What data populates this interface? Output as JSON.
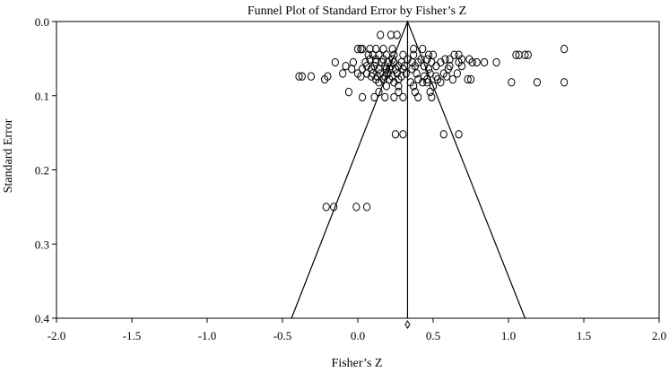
{
  "chart_data": {
    "type": "scatter",
    "title": "Funnel Plot of Standard Error by Fisher’s Z",
    "xlabel": "Fisher’s Z",
    "ylabel": "Standard Error",
    "xlim": [
      -2.0,
      2.0
    ],
    "ylim": [
      0.0,
      0.4
    ],
    "y_inverted": true,
    "x_ticks": [
      "-2.0",
      "-1.5",
      "-1.0",
      "-0.5",
      "0.0",
      "0.5",
      "1.0",
      "1.5",
      "2.0"
    ],
    "y_ticks": [
      "0.0",
      "0.1",
      "0.2",
      "0.3",
      "0.4"
    ],
    "x_tick_values": [
      -2.0,
      -1.5,
      -1.0,
      -0.5,
      0.0,
      0.5,
      1.0,
      1.5,
      2.0
    ],
    "y_tick_values": [
      0.0,
      0.1,
      0.2,
      0.3,
      0.4
    ],
    "summary_effect": 0.33,
    "funnel": {
      "apex": [
        0.33,
        0.0
      ],
      "left_base": [
        -0.44,
        0.4
      ],
      "right_base": [
        1.11,
        0.4
      ]
    },
    "marker": "circle-open",
    "points": [
      [
        0.15,
        0.018
      ],
      [
        0.22,
        0.018
      ],
      [
        0.26,
        0.018
      ],
      [
        0.0,
        0.037
      ],
      [
        0.02,
        0.037
      ],
      [
        0.03,
        0.037
      ],
      [
        0.08,
        0.037
      ],
      [
        0.12,
        0.037
      ],
      [
        0.17,
        0.037
      ],
      [
        0.23,
        0.037
      ],
      [
        0.37,
        0.037
      ],
      [
        0.43,
        0.037
      ],
      [
        1.37,
        0.037
      ],
      [
        0.07,
        0.045
      ],
      [
        0.1,
        0.045
      ],
      [
        0.14,
        0.045
      ],
      [
        0.19,
        0.045
      ],
      [
        0.24,
        0.045
      ],
      [
        0.3,
        0.045
      ],
      [
        0.37,
        0.045
      ],
      [
        0.47,
        0.045
      ],
      [
        0.5,
        0.045
      ],
      [
        0.64,
        0.045
      ],
      [
        0.67,
        0.045
      ],
      [
        1.05,
        0.045
      ],
      [
        1.07,
        0.045
      ],
      [
        1.11,
        0.045
      ],
      [
        1.13,
        0.045
      ],
      [
        0.08,
        0.051
      ],
      [
        0.12,
        0.051
      ],
      [
        0.17,
        0.051
      ],
      [
        0.23,
        0.051
      ],
      [
        0.33,
        0.051
      ],
      [
        0.42,
        0.051
      ],
      [
        0.46,
        0.051
      ],
      [
        0.58,
        0.051
      ],
      [
        0.61,
        0.051
      ],
      [
        0.69,
        0.051
      ],
      [
        0.74,
        0.051
      ],
      [
        -0.15,
        0.055
      ],
      [
        -0.03,
        0.055
      ],
      [
        0.05,
        0.055
      ],
      [
        0.12,
        0.055
      ],
      [
        0.16,
        0.055
      ],
      [
        0.2,
        0.055
      ],
      [
        0.24,
        0.055
      ],
      [
        0.29,
        0.055
      ],
      [
        0.36,
        0.055
      ],
      [
        0.4,
        0.055
      ],
      [
        0.49,
        0.055
      ],
      [
        0.55,
        0.055
      ],
      [
        0.67,
        0.055
      ],
      [
        0.76,
        0.055
      ],
      [
        0.79,
        0.055
      ],
      [
        0.84,
        0.055
      ],
      [
        0.92,
        0.055
      ],
      [
        -0.08,
        0.06
      ],
      [
        0.06,
        0.06
      ],
      [
        0.11,
        0.06
      ],
      [
        0.18,
        0.06
      ],
      [
        0.22,
        0.06
      ],
      [
        0.27,
        0.06
      ],
      [
        0.31,
        0.06
      ],
      [
        0.38,
        0.06
      ],
      [
        0.44,
        0.06
      ],
      [
        0.52,
        0.06
      ],
      [
        0.61,
        0.06
      ],
      [
        0.69,
        0.06
      ],
      [
        -0.04,
        0.064
      ],
      [
        0.03,
        0.064
      ],
      [
        0.09,
        0.064
      ],
      [
        0.14,
        0.064
      ],
      [
        0.19,
        0.064
      ],
      [
        0.21,
        0.064
      ],
      [
        0.25,
        0.064
      ],
      [
        0.3,
        0.064
      ],
      [
        0.36,
        0.064
      ],
      [
        0.47,
        0.064
      ],
      [
        0.6,
        0.064
      ],
      [
        -0.1,
        0.07
      ],
      [
        0.0,
        0.07
      ],
      [
        0.06,
        0.07
      ],
      [
        0.1,
        0.07
      ],
      [
        0.15,
        0.07
      ],
      [
        0.2,
        0.07
      ],
      [
        0.26,
        0.07
      ],
      [
        0.32,
        0.07
      ],
      [
        0.39,
        0.07
      ],
      [
        0.48,
        0.07
      ],
      [
        0.57,
        0.07
      ],
      [
        0.66,
        0.07
      ],
      [
        -0.39,
        0.074
      ],
      [
        -0.37,
        0.074
      ],
      [
        -0.31,
        0.074
      ],
      [
        -0.2,
        0.074
      ],
      [
        0.02,
        0.074
      ],
      [
        0.09,
        0.074
      ],
      [
        0.13,
        0.074
      ],
      [
        0.18,
        0.074
      ],
      [
        0.23,
        0.074
      ],
      [
        0.29,
        0.074
      ],
      [
        0.44,
        0.074
      ],
      [
        0.52,
        0.074
      ],
      [
        0.59,
        0.074
      ],
      [
        -0.22,
        0.078
      ],
      [
        0.12,
        0.078
      ],
      [
        0.17,
        0.078
      ],
      [
        0.21,
        0.078
      ],
      [
        0.27,
        0.078
      ],
      [
        0.4,
        0.078
      ],
      [
        0.46,
        0.078
      ],
      [
        0.53,
        0.078
      ],
      [
        0.63,
        0.078
      ],
      [
        0.73,
        0.078
      ],
      [
        0.75,
        0.078
      ],
      [
        0.14,
        0.082
      ],
      [
        0.24,
        0.082
      ],
      [
        0.35,
        0.082
      ],
      [
        0.43,
        0.082
      ],
      [
        0.46,
        0.082
      ],
      [
        0.55,
        0.082
      ],
      [
        1.02,
        0.082
      ],
      [
        1.19,
        0.082
      ],
      [
        1.37,
        0.082
      ],
      [
        0.19,
        0.087
      ],
      [
        0.27,
        0.087
      ],
      [
        0.37,
        0.087
      ],
      [
        0.5,
        0.087
      ],
      [
        -0.06,
        0.095
      ],
      [
        0.14,
        0.095
      ],
      [
        0.27,
        0.095
      ],
      [
        0.38,
        0.095
      ],
      [
        0.48,
        0.095
      ],
      [
        0.03,
        0.102
      ],
      [
        0.11,
        0.102
      ],
      [
        0.18,
        0.102
      ],
      [
        0.24,
        0.102
      ],
      [
        0.3,
        0.102
      ],
      [
        0.4,
        0.102
      ],
      [
        0.49,
        0.102
      ],
      [
        0.25,
        0.152
      ],
      [
        0.3,
        0.152
      ],
      [
        0.57,
        0.152
      ],
      [
        0.67,
        0.152
      ],
      [
        -0.21,
        0.25
      ],
      [
        -0.16,
        0.25
      ],
      [
        -0.01,
        0.25
      ],
      [
        0.06,
        0.25
      ]
    ]
  }
}
